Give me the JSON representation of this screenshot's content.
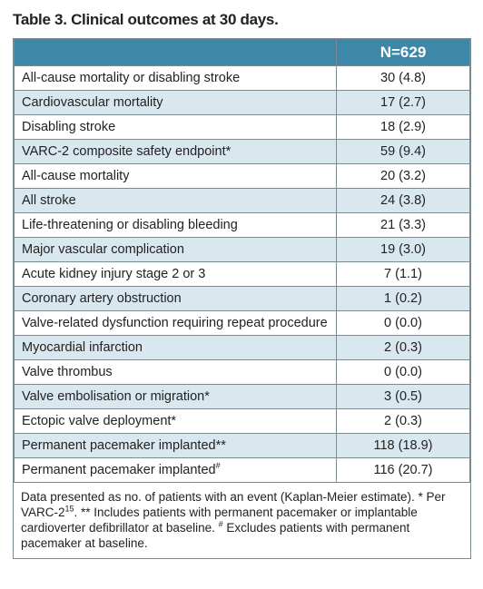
{
  "title": "Table 3. Clinical outcomes at 30 days.",
  "table": {
    "header": "N=629",
    "rows": [
      {
        "label": "All-cause mortality or disabling stroke",
        "value": "30 (4.8)"
      },
      {
        "label": "Cardiovascular mortality",
        "value": "17 (2.7)"
      },
      {
        "label": "Disabling stroke",
        "value": "18 (2.9)"
      },
      {
        "label": "VARC-2 composite safety endpoint*",
        "value": "59 (9.4)"
      },
      {
        "label": "All-cause mortality",
        "value": "20 (3.2)"
      },
      {
        "label": "All stroke",
        "value": "24 (3.8)"
      },
      {
        "label": "Life-threatening or disabling bleeding",
        "value": "21 (3.3)"
      },
      {
        "label": "Major vascular complication",
        "value": "19 (3.0)"
      },
      {
        "label": "Acute kidney injury stage 2 or 3",
        "value": "7 (1.1)"
      },
      {
        "label": "Coronary artery obstruction",
        "value": "1 (0.2)"
      },
      {
        "label": "Valve-related dysfunction requiring repeat procedure",
        "value": "0 (0.0)"
      },
      {
        "label": "Myocardial infarction",
        "value": "2 (0.3)"
      },
      {
        "label": "Valve thrombus",
        "value": "0 (0.0)"
      },
      {
        "label": "Valve embolisation or migration*",
        "value": "3 (0.5)"
      },
      {
        "label": "Ectopic valve deployment*",
        "value": "2 (0.3)"
      },
      {
        "label": "Permanent pacemaker implanted**",
        "value": "118 (18.9)"
      },
      {
        "label": "Permanent pacemaker implanted",
        "label_sup": "#",
        "value": "116 (20.7)"
      }
    ]
  },
  "footnote": [
    "Data presented as no. of patients with an event (Kaplan-Meier estimate). * Per VARC-2",
    "15",
    ". ** Includes patients with permanent pacemaker or implantable cardioverter defibrillator at baseline. ",
    "#",
    " Excludes patients with permanent pacemaker at baseline."
  ]
}
